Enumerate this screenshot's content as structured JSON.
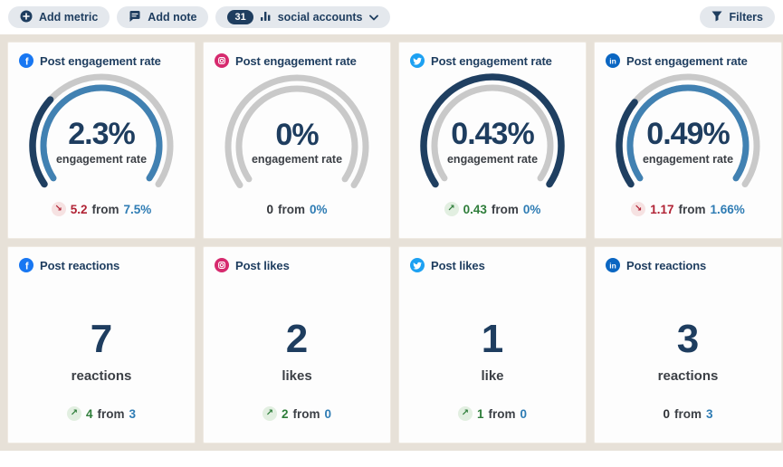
{
  "toolbar": {
    "add_metric_label": "Add metric",
    "add_note_label": "Add note",
    "accounts_count": "31",
    "accounts_label": "social accounts",
    "filters_label": "Filters"
  },
  "colors": {
    "navy": "#1e3d5f",
    "gauge_current": "#1f3f61",
    "gauge_previous": "#4181b2",
    "gauge_track": "#c9c9c9",
    "positive": "#2e7d3a",
    "negative": "#b12335",
    "previous_link": "#2e7cb4",
    "page_background": "#e7e1d8",
    "facebook": "#1877f2",
    "instagram": "#d62a6e",
    "twitter": "#1da1f2",
    "linkedin": "#0a66c2"
  },
  "cards": [
    {
      "network": "facebook",
      "title": "Post engagement rate",
      "type": "gauge",
      "value": "2.3%",
      "label": "engagement rate",
      "gauge": {
        "current": 2.3,
        "previous": 7.5
      },
      "delta": {
        "direction": "down",
        "change": "5.2",
        "from_word": "from",
        "previous": "7.5%"
      }
    },
    {
      "network": "instagram",
      "title": "Post engagement rate",
      "type": "gauge",
      "value": "0%",
      "label": "engagement rate",
      "gauge": {
        "current": 0,
        "previous": 0
      },
      "delta": {
        "direction": "none",
        "change": "0",
        "from_word": "from",
        "previous": "0%"
      }
    },
    {
      "network": "twitter",
      "title": "Post engagement rate",
      "type": "gauge",
      "value": "0.43%",
      "label": "engagement rate",
      "gauge": {
        "current": 0.43,
        "previous": 0
      },
      "delta": {
        "direction": "up",
        "change": "0.43",
        "from_word": "from",
        "previous": "0%"
      }
    },
    {
      "network": "linkedin",
      "title": "Post engagement rate",
      "type": "gauge",
      "value": "0.49%",
      "label": "engagement rate",
      "gauge": {
        "current": 0.49,
        "previous": 1.66
      },
      "delta": {
        "direction": "down",
        "change": "1.17",
        "from_word": "from",
        "previous": "1.66%"
      }
    },
    {
      "network": "facebook",
      "title": "Post reactions",
      "type": "number",
      "value": "7",
      "label": "reactions",
      "delta": {
        "direction": "up",
        "change": "4",
        "from_word": "from",
        "previous": "3"
      }
    },
    {
      "network": "instagram",
      "title": "Post likes",
      "type": "number",
      "value": "2",
      "label": "likes",
      "delta": {
        "direction": "up",
        "change": "2",
        "from_word": "from",
        "previous": "0"
      }
    },
    {
      "network": "twitter",
      "title": "Post likes",
      "type": "number",
      "value": "1",
      "label": "like",
      "delta": {
        "direction": "up",
        "change": "1",
        "from_word": "from",
        "previous": "0"
      }
    },
    {
      "network": "linkedin",
      "title": "Post reactions",
      "type": "number",
      "value": "3",
      "label": "reactions",
      "delta": {
        "direction": "none",
        "change": "0",
        "from_word": "from",
        "previous": "3"
      }
    }
  ]
}
